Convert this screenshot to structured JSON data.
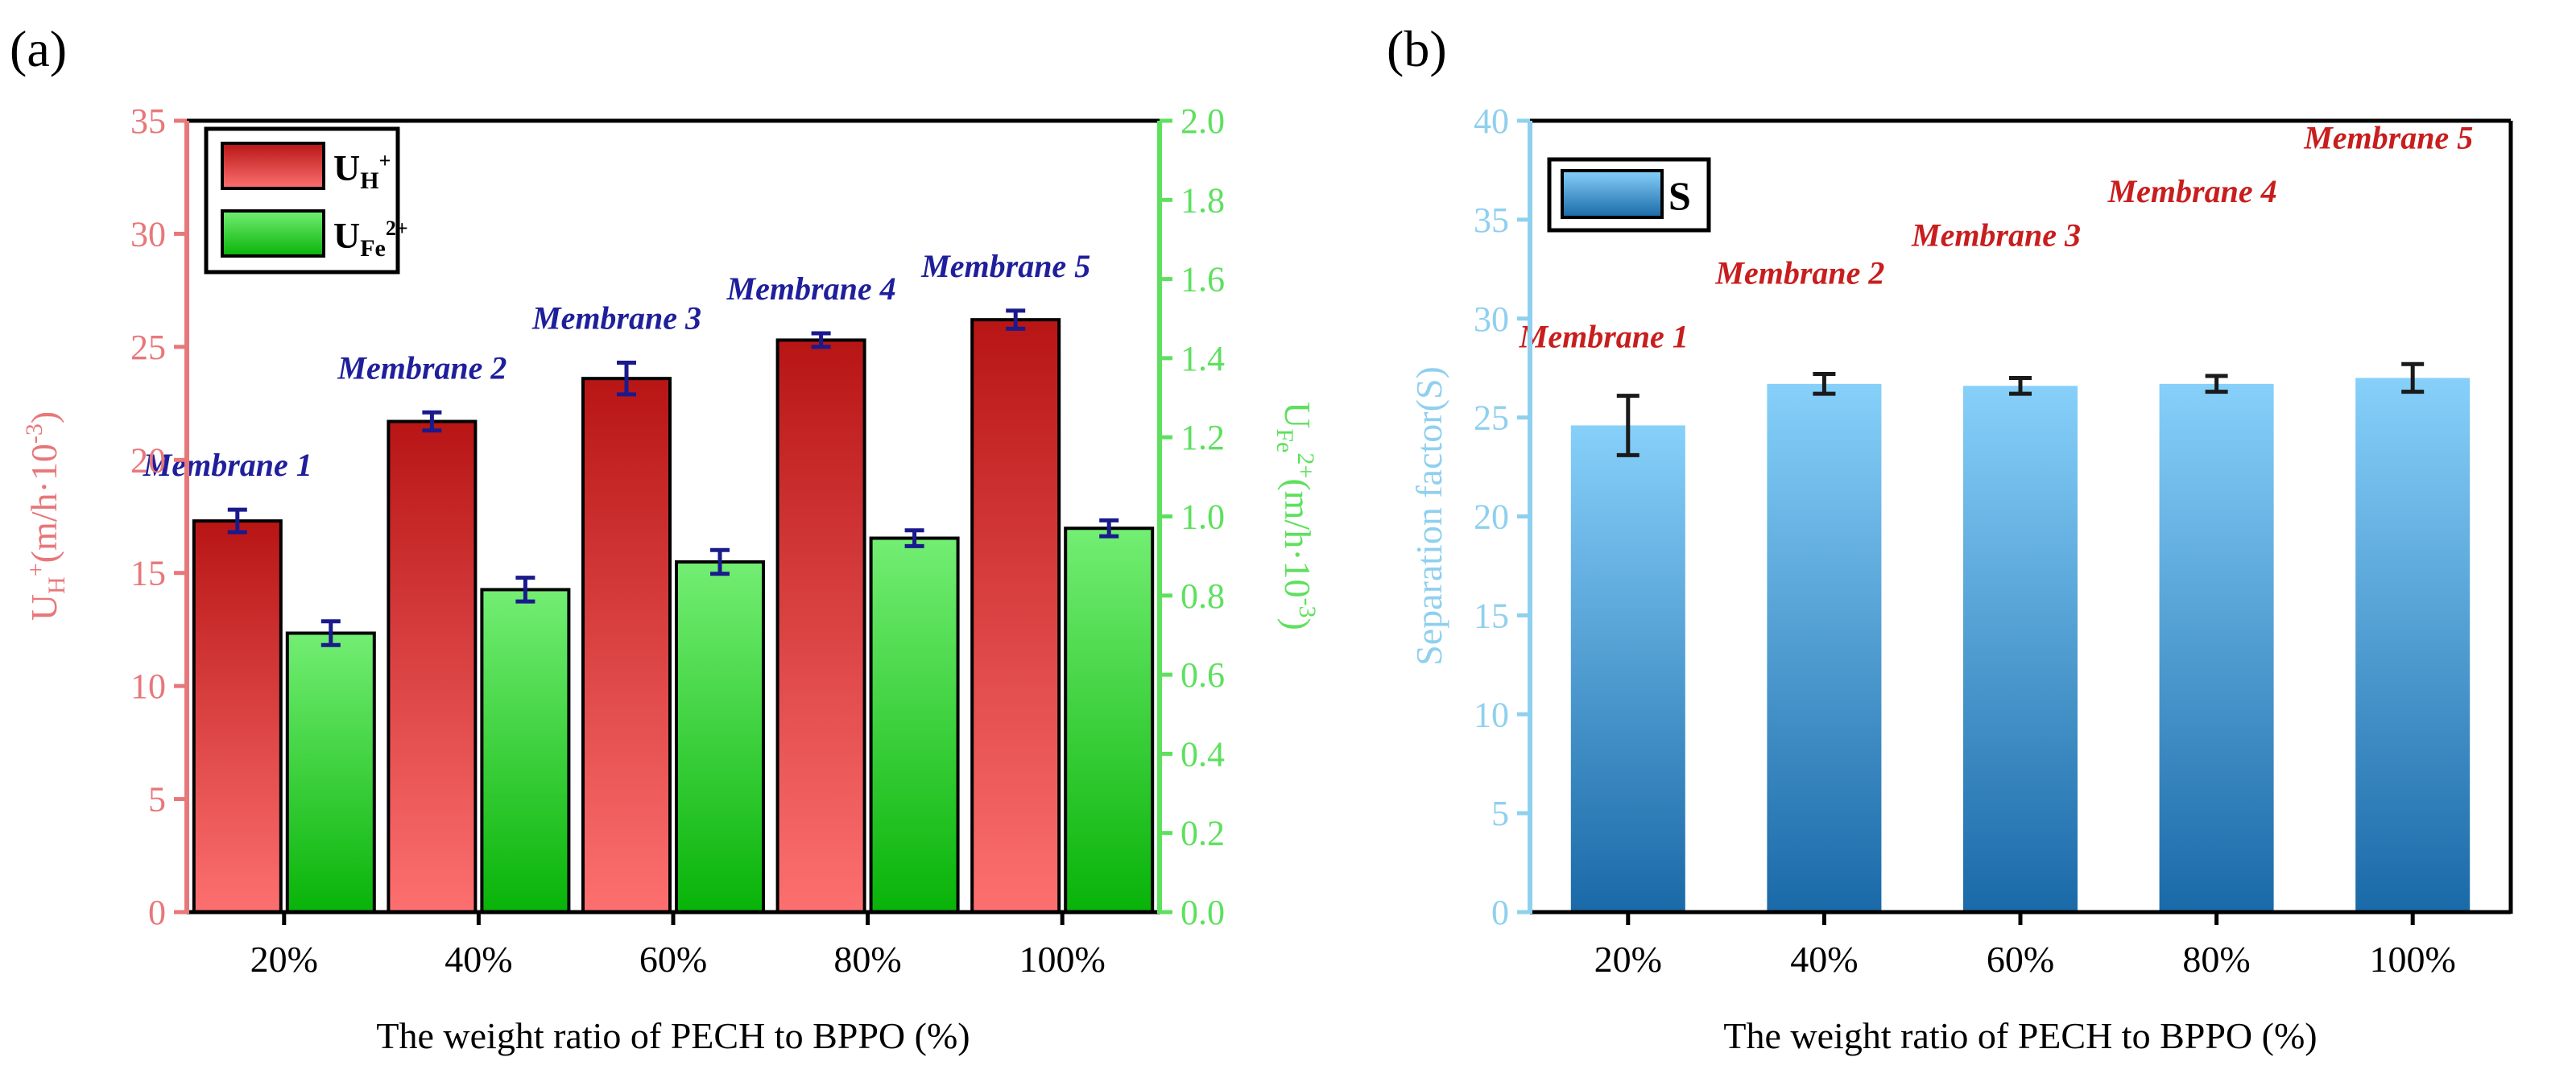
{
  "figure": {
    "panel_a_label": "(a)",
    "panel_b_label": "(b)"
  },
  "chart_data": [
    {
      "panel": "(a)",
      "type": "bar",
      "xlabel": "The weight ratio of PECH to BPPO (%)",
      "categories": [
        "20%",
        "40%",
        "60%",
        "80%",
        "100%"
      ],
      "annotations": [
        "Membrane 1",
        "Membrane 2",
        "Membrane 3",
        "Membrane 4",
        "Membrane 5"
      ],
      "annotation_color": "#1f1f9c",
      "y_left": {
        "label_main": "U",
        "label_sub": "H",
        "label_sup": "+",
        "label_unit": "(m/h·10",
        "label_unit_sup": "-3",
        "label_close": ")",
        "range": [
          0,
          35
        ],
        "ticks": [
          0,
          5,
          10,
          15,
          20,
          25,
          30,
          35
        ],
        "color": "#e8777a"
      },
      "y_right": {
        "label_main": "U",
        "label_sub": "Fe",
        "label_sup": "2+",
        "label_unit": "(m/h·10",
        "label_unit_sup": "-3",
        "label_close": ")",
        "range": [
          0,
          2.0
        ],
        "ticks": [
          "0.0",
          "0.2",
          "0.4",
          "0.6",
          "0.8",
          "1.0",
          "1.2",
          "1.4",
          "1.6",
          "1.8",
          "2.0"
        ],
        "color": "#5ee05e"
      },
      "series": [
        {
          "name": "U",
          "name_sub": "H",
          "name_sup": "+",
          "axis": "left",
          "values": [
            17.3,
            21.7,
            23.6,
            25.3,
            26.2
          ],
          "errors": [
            0.5,
            0.4,
            0.7,
            0.3,
            0.4
          ],
          "color_top": "#b81515",
          "color_bottom": "#fd7070"
        },
        {
          "name": "U",
          "name_sub": "Fe",
          "name_sup": "2+",
          "axis": "right",
          "values": [
            0.705,
            0.815,
            0.885,
            0.945,
            0.97
          ],
          "errors": [
            0.03,
            0.03,
            0.03,
            0.02,
            0.02
          ],
          "color_top": "#73ee73",
          "color_bottom": "#08b308"
        }
      ],
      "legend_position": "top-left",
      "errorbar_color": "#1a1a8c"
    },
    {
      "panel": "(b)",
      "type": "bar",
      "xlabel": "The weight ratio of PECH to BPPO (%)",
      "ylabel": "Separation factor(S)",
      "categories": [
        "20%",
        "40%",
        "60%",
        "80%",
        "100%"
      ],
      "annotations": [
        "Membrane 1",
        "Membrane 2",
        "Membrane 3",
        "Membrane 4",
        "Membrane 5"
      ],
      "annotation_color": "#c81e1e",
      "ylim": [
        0,
        40
      ],
      "yticks": [
        0,
        5,
        10,
        15,
        20,
        25,
        30,
        35,
        40
      ],
      "axis_color": "#8fd0ee",
      "series": [
        {
          "name": "S",
          "values": [
            24.6,
            26.7,
            26.6,
            26.7,
            27.0
          ],
          "errors": [
            1.5,
            0.5,
            0.4,
            0.4,
            0.7
          ],
          "color_top": "#86d0fa",
          "color_bottom": "#1a69a8"
        }
      ],
      "legend_position": "top-left",
      "errorbar_color": "#1a1a1a"
    }
  ]
}
